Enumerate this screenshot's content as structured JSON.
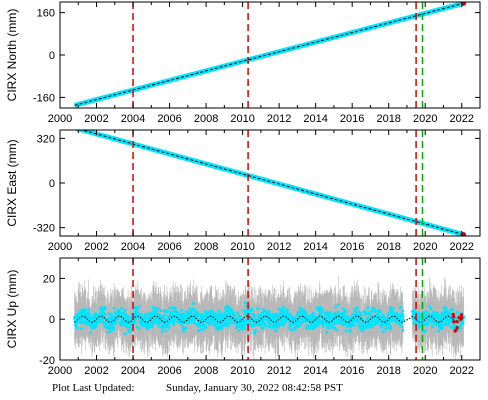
{
  "footer": {
    "label": "Plot Last Updated:",
    "value": "Sunday, January 30, 2022 08:42:58 PST"
  },
  "colors": {
    "data": "#00e5ff",
    "error_bar": "#b8b8b8",
    "model": "#000000",
    "red_line": "#e00000",
    "green_line": "#00b000",
    "recent": "#e00000"
  },
  "chart_data": [
    {
      "type": "scatter",
      "ylabel": "CIRX North (mm)",
      "xlabel": "",
      "xlim": [
        2000,
        2023
      ],
      "ylim": [
        -200,
        200
      ],
      "xticks": [
        2000,
        2002,
        2004,
        2006,
        2008,
        2010,
        2012,
        2014,
        2016,
        2018,
        2020,
        2022
      ],
      "yticks": [
        -160,
        0,
        160
      ],
      "red_dashed_x": [
        2004.0,
        2010.3,
        2019.5
      ],
      "green_dashed_x": [
        2019.85
      ],
      "series": [
        {
          "x": [
            2000.8,
            2022.1
          ],
          "y": [
            -190,
            195
          ]
        }
      ]
    },
    {
      "type": "scatter",
      "ylabel": "CIRX East (mm)",
      "xlabel": "",
      "xlim": [
        2000,
        2023
      ],
      "ylim": [
        -380,
        380
      ],
      "xticks": [
        2000,
        2002,
        2004,
        2006,
        2008,
        2010,
        2012,
        2014,
        2016,
        2018,
        2020,
        2022
      ],
      "yticks": [
        -320,
        0,
        320
      ],
      "red_dashed_x": [
        2004.0,
        2010.3,
        2019.5
      ],
      "green_dashed_x": [
        2019.85
      ],
      "series": [
        {
          "x": [
            2000.8,
            2022.1
          ],
          "y": [
            395,
            -370
          ]
        }
      ]
    },
    {
      "type": "scatter",
      "ylabel": "CIRX Up (mm)",
      "xlabel": "",
      "xlim": [
        2000,
        2023
      ],
      "ylim": [
        -20,
        30
      ],
      "xticks": [
        2000,
        2002,
        2004,
        2006,
        2008,
        2010,
        2012,
        2014,
        2016,
        2018,
        2020,
        2022
      ],
      "yticks": [
        -20,
        0,
        20
      ],
      "red_dashed_x": [
        2004.0,
        2010.3,
        2019.5
      ],
      "green_dashed_x": [
        2019.85
      ],
      "series": [
        {
          "x_range": [
            2000.8,
            2022.1
          ],
          "mean": 0,
          "seasonal_amplitude": 1.5,
          "scatter": 6,
          "data_gap": [
            2018.8,
            2019.3
          ]
        }
      ]
    }
  ]
}
